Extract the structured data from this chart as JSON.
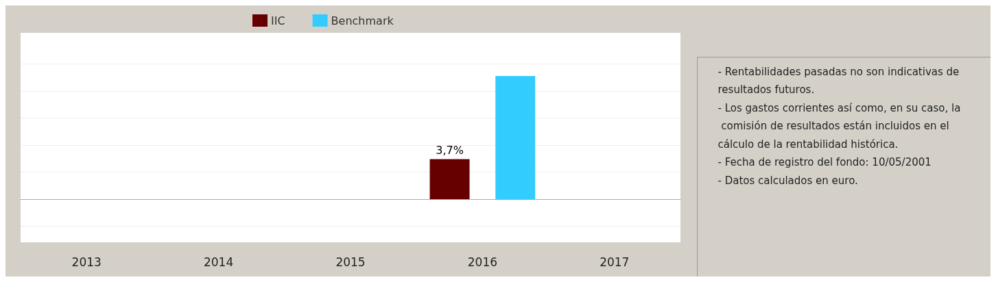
{
  "chart_data": {
    "type": "bar",
    "categories": [
      "2013",
      "2014",
      "2015",
      "2016",
      "2017"
    ],
    "series": [
      {
        "name": "IIC",
        "color": "#660000",
        "values": [
          null,
          null,
          null,
          3.7,
          null
        ],
        "value_labels": [
          null,
          null,
          null,
          "3,7%",
          null
        ]
      },
      {
        "name": "Benchmark",
        "color": "#33ccff",
        "values": [
          null,
          null,
          null,
          11.4,
          null
        ]
      }
    ],
    "ylim": [
      -4,
      15.4
    ],
    "yticks": [
      {
        "value": -2.5,
        "label": null
      },
      {
        "value": 0,
        "label": null
      },
      {
        "value": 2.5,
        "label": null
      },
      {
        "value": 5,
        "label": null
      },
      {
        "value": 7.5,
        "label": null
      },
      {
        "value": 10,
        "label": null
      },
      {
        "value": 12.5,
        "label": null
      }
    ],
    "tick_labels": "x",
    "grid": "y",
    "legend": "top",
    "annotations": [
      "- Rentabilidades pasadas no son indicativas de resultados futuros.",
      "- Los gastos corrientes así como, en su caso, la comisión de resultados están incluidos en el cálculo de la rentabilidad histórica.",
      "- Fecha de registro del fondo: 10/05/2001",
      "- Datos calculados en euro."
    ]
  }
}
